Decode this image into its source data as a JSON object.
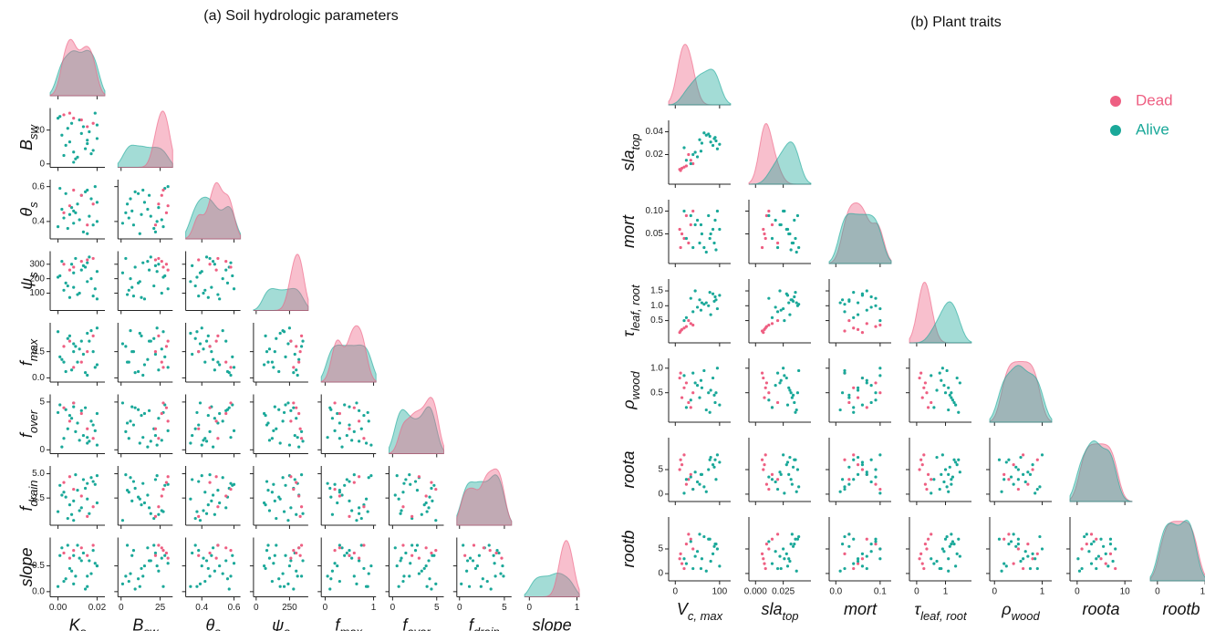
{
  "chart_data": [
    {
      "type": "pairplot",
      "title": "(a) Soil hydrologic parameters",
      "variables": [
        {
          "label": "K",
          "sub": "s",
          "lim": [
            -0.004,
            0.024
          ],
          "xticks": [
            {
              "value": 0,
              "label": "0.00"
            },
            {
              "value": 0.02,
              "label": "0.02"
            }
          ],
          "yticks": []
        },
        {
          "label": "B",
          "sub": "sw",
          "lim": [
            -2,
            33
          ],
          "xticks": [
            0,
            25
          ],
          "yticks": [
            0,
            20
          ]
        },
        {
          "label": "θ",
          "sub": "s",
          "lim": [
            0.3,
            0.64
          ],
          "xticks": [
            0.4,
            0.6
          ],
          "yticks": [
            0.4,
            0.6
          ]
        },
        {
          "label": "ψ",
          "sub": "s",
          "lim": [
            -20,
            390
          ],
          "xticks": [
            0,
            250
          ],
          "yticks": [
            100,
            200,
            300
          ]
        },
        {
          "label": "f",
          "sub": "max",
          "lim": [
            -0.08,
            1.05
          ],
          "xticks": [
            0,
            1
          ],
          "yticks": [
            {
              "value": 0,
              "label": "0.0"
            },
            0.5
          ]
        },
        {
          "label": "f",
          "sub": "over",
          "lim": [
            -0.4,
            5.8
          ],
          "xticks": [
            0,
            5
          ],
          "yticks": [
            0,
            5
          ]
        },
        {
          "label": "f",
          "sub": "drain",
          "lim": [
            -0.3,
            5.8
          ],
          "xticks": [
            0,
            5
          ],
          "yticks": [
            2.5,
            {
              "value": 5,
              "label": "5.0"
            }
          ]
        },
        {
          "label": "slope",
          "sub": "",
          "lim": [
            -0.1,
            1.05
          ],
          "xticks": [
            0,
            1
          ],
          "yticks": [
            {
              "value": 0,
              "label": "0.0"
            },
            0.5
          ]
        }
      ],
      "series": [
        {
          "name": "Alive",
          "color": "#1aa899",
          "samples": [
            [
              0.003,
              5,
              0.42,
              120,
              0.3,
              1.2,
              3.1,
              0.2
            ],
            [
              0.012,
              18,
              0.55,
              260,
              0.7,
              4.1,
              1.5,
              0.6
            ],
            [
              0.018,
              8,
              0.38,
              80,
              0.5,
              2.6,
              4.2,
              0.8
            ],
            [
              0.007,
              24,
              0.48,
              300,
              0.15,
              3.3,
              0.8,
              0.4
            ],
            [
              0.015,
              12,
              0.33,
              180,
              0.85,
              0.7,
              2.4,
              0.1
            ],
            [
              0.001,
              28,
              0.59,
              220,
              0.4,
              4.7,
              3.8,
              0.7
            ],
            [
              0.009,
              3,
              0.45,
              340,
              0.6,
              1.9,
              4.9,
              0.3
            ],
            [
              0.02,
              15,
              0.51,
              60,
              0.25,
              3.8,
              2.0,
              0.5
            ],
            [
              0.005,
              21,
              0.36,
              150,
              0.75,
              2.2,
              0.4,
              0.9
            ],
            [
              0.014,
              9,
              0.57,
              280,
              0.1,
              4.4,
              3.5,
              0.05
            ],
            [
              0.011,
              26,
              0.41,
              100,
              0.55,
              1.0,
              1.2,
              0.65
            ],
            [
              0.017,
              6,
              0.53,
              200,
              0.9,
              3.0,
              4.6,
              0.35
            ],
            [
              0.002,
              17,
              0.47,
              320,
              0.35,
              0.3,
              2.8,
              0.85
            ],
            [
              0.008,
              1,
              0.39,
              240,
              0.65,
              4.9,
              0.2,
              0.15
            ],
            [
              0.019,
              30,
              0.6,
              130,
              0.2,
              2.0,
              3.9,
              0.55
            ],
            [
              0.006,
              13,
              0.44,
              70,
              0.8,
              3.6,
              1.8,
              0.45
            ],
            [
              0.013,
              22,
              0.34,
              290,
              0.45,
              1.5,
              4.4,
              0.75
            ],
            [
              0.004,
              11,
              0.56,
              170,
              0.12,
              4.2,
              2.6,
              0.25
            ],
            [
              0.016,
              19,
              0.43,
              350,
              0.7,
              0.9,
              0.9,
              0.6
            ],
            [
              0.01,
              4,
              0.5,
              90,
              0.3,
              2.8,
              3.3,
              0.9
            ],
            [
              0.0,
              27,
              0.37,
              210,
              0.88,
              3.9,
              1.1,
              0.1
            ],
            [
              0.015,
              14,
              0.58,
              310,
              0.05,
              1.3,
              4.0,
              0.3
            ],
            [
              0.008,
              7,
              0.46,
              140,
              0.5,
              4.5,
              2.2,
              0.7
            ],
            [
              0.02,
              23,
              0.4,
              250,
              0.95,
              0.5,
              4.8,
              0.5
            ]
          ]
        },
        {
          "name": "Dead",
          "color": "#ee5f82",
          "samples": [
            [
              0.012,
              26,
              0.55,
              320,
              0.3,
              3.8,
              2.7,
              0.85
            ],
            [
              0.003,
              29,
              0.45,
              300,
              0.6,
              4.4,
              4.1,
              0.75
            ],
            [
              0.018,
              24,
              0.5,
              340,
              0.8,
              1.2,
              1.6,
              0.9
            ],
            [
              0.008,
              27,
              0.58,
              280,
              0.2,
              4.9,
              3.4,
              0.8
            ],
            [
              0.015,
              22,
              0.38,
              330,
              0.5,
              2.2,
              0.6,
              0.7
            ],
            [
              0.006,
              30,
              0.49,
              260,
              0.7,
              3.0,
              4.7,
              0.65
            ]
          ]
        }
      ]
    },
    {
      "type": "pairplot",
      "title": "(b) Plant traits",
      "legend": "upper right",
      "variables": [
        {
          "label": "V",
          "sub": "c, max",
          "lim": [
            -15,
            125
          ],
          "xticks": [
            0,
            100
          ],
          "yticks": []
        },
        {
          "label": "sla",
          "sub": "top",
          "lim": [
            -0.006,
            0.05
          ],
          "xticks": [
            {
              "value": 0,
              "label": "0.000"
            },
            0.025
          ],
          "yticks": [
            0.02,
            0.04
          ]
        },
        {
          "label": "mort",
          "sub": "",
          "lim": [
            -0.015,
            0.125
          ],
          "xticks": [
            {
              "value": 0,
              "label": "0.0"
            },
            0.1
          ],
          "yticks": [
            0.05,
            {
              "value": 0.1,
              "label": "0.10"
            }
          ]
        },
        {
          "label": "τ",
          "sub": "leaf, root",
          "lim": [
            -0.25,
            1.9
          ],
          "xticks": [
            0,
            1
          ],
          "yticks": [
            0.5,
            {
              "value": 1,
              "label": "1.0"
            },
            1.5
          ]
        },
        {
          "label": "ρ",
          "sub": "wood",
          "lim": [
            -0.1,
            1.2
          ],
          "xticks": [
            0,
            1
          ],
          "yticks": [
            0.5,
            {
              "value": 1,
              "label": "1.0"
            }
          ]
        },
        {
          "label": "roota",
          "sub": "",
          "lim": [
            -1.5,
            11.5
          ],
          "xticks": [
            0,
            10
          ],
          "yticks": [
            0,
            5
          ]
        },
        {
          "label": "rootb",
          "sub": "",
          "lim": [
            -1.5,
            11.5
          ],
          "xticks": [
            0,
            10
          ],
          "yticks": [
            0,
            5
          ]
        }
      ],
      "series": [
        {
          "name": "Dead",
          "color": "#ee5f82",
          "samples": [
            [
              15,
              0.008,
              0.05,
              0.2,
              0.4,
              6,
              2
            ],
            [
              25,
              0.01,
              0.09,
              0.3,
              0.7,
              2,
              6
            ],
            [
              12,
              0.006,
              0.02,
              0.15,
              0.9,
              7,
              4
            ],
            [
              35,
              0.015,
              0.07,
              0.4,
              0.2,
              4,
              7
            ],
            [
              20,
              0.009,
              0.04,
              0.25,
              0.6,
              8,
              1
            ],
            [
              40,
              0.012,
              0.1,
              0.35,
              0.5,
              1,
              5
            ],
            [
              10,
              0.007,
              0.06,
              0.1,
              0.8,
              5,
              3
            ],
            [
              30,
              0.02,
              0.03,
              0.5,
              0.3,
              3,
              8
            ]
          ]
        },
        {
          "name": "Alive",
          "color": "#1aa899",
          "samples": [
            [
              60,
              0.03,
              0.05,
              1.1,
              0.6,
              4,
              3
            ],
            [
              90,
              0.035,
              0.08,
              1.3,
              0.3,
              7,
              6
            ],
            [
              40,
              0.02,
              0.02,
              0.8,
              0.9,
              1,
              1
            ],
            [
              75,
              0.038,
              0.09,
              1.0,
              0.5,
              5,
              7
            ],
            [
              25,
              0.015,
              0.04,
              0.6,
              0.2,
              3,
              2
            ],
            [
              85,
              0.028,
              0.06,
              1.4,
              0.8,
              6,
              4
            ],
            [
              55,
              0.033,
              0.03,
              1.2,
              0.4,
              2,
              8
            ],
            [
              95,
              0.025,
              0.1,
              0.9,
              1.0,
              8,
              5
            ],
            [
              70,
              0.037,
              0.01,
              1.1,
              0.15,
              0.5,
              0.5
            ],
            [
              45,
              0.022,
              0.07,
              1.5,
              0.7,
              4.5,
              3.5
            ],
            [
              80,
              0.031,
              0.05,
              0.7,
              0.55,
              7.5,
              2.5
            ],
            [
              35,
              0.012,
              0.09,
              1.25,
              0.35,
              3.5,
              6.5
            ],
            [
              65,
              0.039,
              0.02,
              1.05,
              0.95,
              1.5,
              7.5
            ],
            [
              100,
              0.029,
              0.06,
              1.35,
              0.25,
              6.5,
              1.5
            ],
            [
              50,
              0.018,
              0.08,
              0.95,
              0.65,
              2.5,
              4.5
            ],
            [
              88,
              0.034,
              0.03,
              1.15,
              0.45,
              5.5,
              5.5
            ],
            [
              20,
              0.026,
              0.1,
              0.5,
              0.85,
              0.2,
              3
            ],
            [
              78,
              0.036,
              0.04,
              1.45,
              0.1,
              7,
              7
            ],
            [
              58,
              0.023,
              0.07,
              0.85,
              0.75,
              4,
              1
            ],
            [
              92,
              0.032,
              0.015,
              1.2,
              0.5,
              3,
              6
            ]
          ]
        }
      ]
    }
  ]
}
